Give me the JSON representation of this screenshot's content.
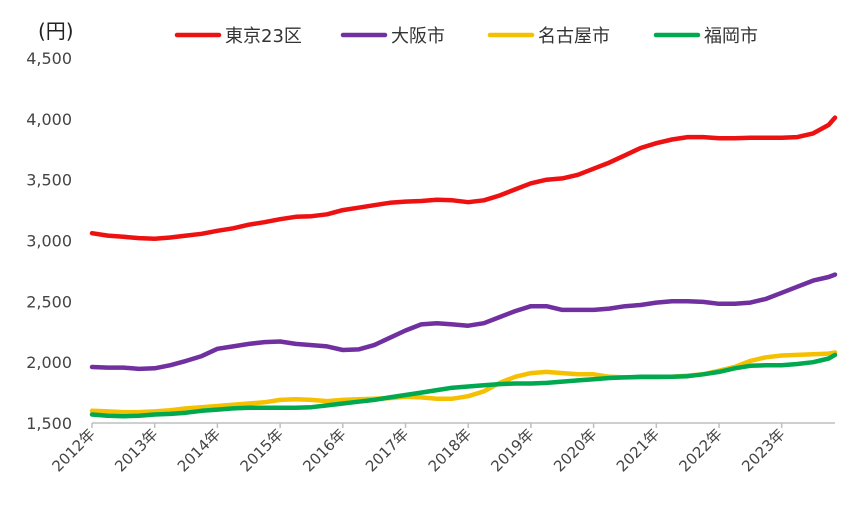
{
  "chart_data": {
    "type": "line",
    "unit_label": "(円)",
    "ylim": [
      1500,
      4500
    ],
    "y_ticks": [
      "1,500",
      "2,000",
      "2,500",
      "3,000",
      "3,500",
      "4,000",
      "4,500"
    ],
    "y_tick_values": [
      1500,
      2000,
      2500,
      3000,
      3500,
      4000,
      4500
    ],
    "x_ticks": [
      "2012年",
      "2013年",
      "2014年",
      "2015年",
      "2016年",
      "2017年",
      "2018年",
      "2019年",
      "2020年",
      "2021年",
      "2022年",
      "2023年"
    ],
    "x_tick_values": [
      2012,
      2013,
      2014,
      2015,
      2016,
      2017,
      2018,
      2019,
      2020,
      2021,
      2022,
      2023
    ],
    "xlim": [
      2012,
      2023.85
    ],
    "grid": false,
    "legend_position": "top",
    "series": [
      {
        "name": "東京23区",
        "color": "#ee1111",
        "x": [
          2012.0,
          2012.25,
          2012.5,
          2012.75,
          2013.0,
          2013.25,
          2013.5,
          2013.75,
          2014.0,
          2014.25,
          2014.5,
          2014.75,
          2015.0,
          2015.25,
          2015.5,
          2015.75,
          2016.0,
          2016.25,
          2016.5,
          2016.75,
          2017.0,
          2017.25,
          2017.5,
          2017.75,
          2018.0,
          2018.25,
          2018.5,
          2018.75,
          2019.0,
          2019.25,
          2019.5,
          2019.75,
          2020.0,
          2020.25,
          2020.5,
          2020.75,
          2021.0,
          2021.25,
          2021.5,
          2021.75,
          2022.0,
          2022.25,
          2022.5,
          2022.75,
          2023.0,
          2023.25,
          2023.5,
          2023.75,
          2023.85
        ],
        "y": [
          3060,
          3040,
          3030,
          3020,
          3015,
          3025,
          3040,
          3055,
          3080,
          3100,
          3130,
          3150,
          3175,
          3195,
          3200,
          3215,
          3250,
          3270,
          3290,
          3310,
          3320,
          3325,
          3335,
          3330,
          3315,
          3330,
          3370,
          3420,
          3470,
          3500,
          3510,
          3540,
          3590,
          3640,
          3700,
          3760,
          3800,
          3830,
          3850,
          3850,
          3840,
          3840,
          3845,
          3845,
          3845,
          3850,
          3880,
          3950,
          4010
        ]
      },
      {
        "name": "大阪市",
        "color": "#7030a0",
        "x": [
          2012.0,
          2012.25,
          2012.5,
          2012.75,
          2013.0,
          2013.25,
          2013.5,
          2013.75,
          2014.0,
          2014.25,
          2014.5,
          2014.75,
          2015.0,
          2015.25,
          2015.5,
          2015.75,
          2016.0,
          2016.25,
          2016.5,
          2016.75,
          2017.0,
          2017.25,
          2017.5,
          2017.75,
          2018.0,
          2018.25,
          2018.5,
          2018.75,
          2019.0,
          2019.25,
          2019.5,
          2019.75,
          2020.0,
          2020.25,
          2020.5,
          2020.75,
          2021.0,
          2021.25,
          2021.5,
          2021.75,
          2022.0,
          2022.25,
          2022.5,
          2022.75,
          2023.0,
          2023.25,
          2023.5,
          2023.75,
          2023.85
        ],
        "y": [
          1960,
          1955,
          1955,
          1945,
          1950,
          1975,
          2010,
          2050,
          2110,
          2130,
          2150,
          2165,
          2170,
          2150,
          2140,
          2130,
          2100,
          2105,
          2140,
          2200,
          2260,
          2310,
          2320,
          2310,
          2300,
          2320,
          2370,
          2420,
          2460,
          2460,
          2430,
          2430,
          2430,
          2440,
          2460,
          2470,
          2490,
          2500,
          2500,
          2495,
          2480,
          2480,
          2490,
          2520,
          2570,
          2620,
          2670,
          2700,
          2720
        ]
      },
      {
        "name": "名古屋市",
        "color": "#f5c000",
        "x": [
          2012.0,
          2012.25,
          2012.5,
          2012.75,
          2013.0,
          2013.25,
          2013.5,
          2013.75,
          2014.0,
          2014.25,
          2014.5,
          2014.75,
          2015.0,
          2015.25,
          2015.5,
          2015.75,
          2016.0,
          2016.25,
          2016.5,
          2016.75,
          2017.0,
          2017.25,
          2017.5,
          2017.75,
          2018.0,
          2018.25,
          2018.5,
          2018.75,
          2019.0,
          2019.25,
          2019.5,
          2019.75,
          2020.0,
          2020.25,
          2020.5,
          2020.75,
          2021.0,
          2021.25,
          2021.5,
          2021.75,
          2022.0,
          2022.25,
          2022.5,
          2022.75,
          2023.0,
          2023.25,
          2023.5,
          2023.75,
          2023.85
        ],
        "y": [
          1600,
          1595,
          1590,
          1590,
          1595,
          1605,
          1620,
          1630,
          1640,
          1650,
          1660,
          1670,
          1690,
          1695,
          1690,
          1680,
          1690,
          1695,
          1700,
          1705,
          1715,
          1710,
          1700,
          1700,
          1720,
          1760,
          1830,
          1880,
          1910,
          1920,
          1910,
          1900,
          1900,
          1880,
          1875,
          1875,
          1875,
          1880,
          1890,
          1900,
          1930,
          1960,
          2010,
          2040,
          2055,
          2060,
          2065,
          2070,
          2080
        ]
      },
      {
        "name": "福岡市",
        "color": "#00a84f",
        "x": [
          2012.0,
          2012.25,
          2012.5,
          2012.75,
          2013.0,
          2013.25,
          2013.5,
          2013.75,
          2014.0,
          2014.25,
          2014.5,
          2014.75,
          2015.0,
          2015.25,
          2015.5,
          2015.75,
          2016.0,
          2016.25,
          2016.5,
          2016.75,
          2017.0,
          2017.25,
          2017.5,
          2017.75,
          2018.0,
          2018.25,
          2018.5,
          2018.75,
          2019.0,
          2019.25,
          2019.5,
          2019.75,
          2020.0,
          2020.25,
          2020.5,
          2020.75,
          2021.0,
          2021.25,
          2021.5,
          2021.75,
          2022.0,
          2022.25,
          2022.5,
          2022.75,
          2023.0,
          2023.25,
          2023.5,
          2023.75,
          2023.85
        ],
        "y": [
          1570,
          1560,
          1555,
          1560,
          1570,
          1575,
          1585,
          1600,
          1610,
          1620,
          1625,
          1625,
          1625,
          1625,
          1630,
          1645,
          1660,
          1675,
          1690,
          1710,
          1730,
          1750,
          1770,
          1790,
          1800,
          1810,
          1820,
          1825,
          1825,
          1830,
          1840,
          1850,
          1860,
          1870,
          1875,
          1880,
          1880,
          1880,
          1885,
          1900,
          1920,
          1950,
          1970,
          1975,
          1975,
          1985,
          2000,
          2030,
          2060
        ]
      }
    ]
  }
}
